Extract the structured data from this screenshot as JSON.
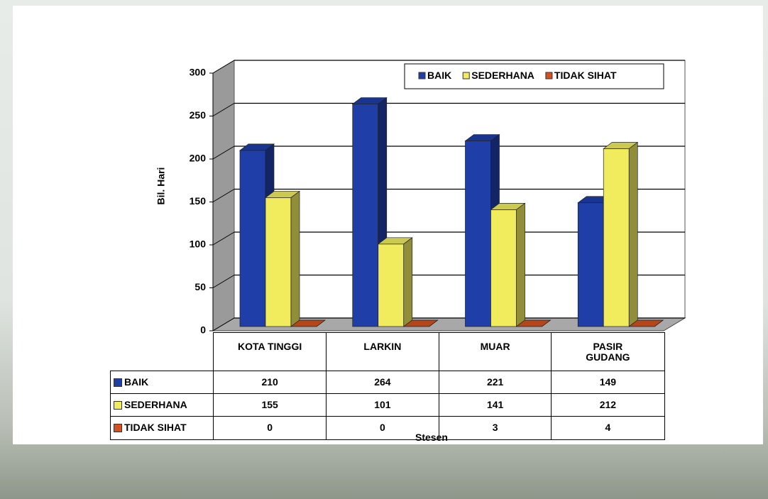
{
  "chart_data": {
    "type": "bar3d",
    "y_label": "Bil. Hari",
    "x_label": "Stesen",
    "categories": [
      "KOTA TINGGI",
      "LARKIN",
      "MUAR",
      "PASIR GUDANG"
    ],
    "series": [
      {
        "name": "BAIK",
        "color": "#1f3ea8",
        "values": [
          210,
          264,
          221,
          149
        ]
      },
      {
        "name": "SEDERHANA",
        "color": "#f0ec5e",
        "values": [
          155,
          101,
          141,
          212
        ]
      },
      {
        "name": "TIDAK SIHAT",
        "color": "#d4521f",
        "values": [
          0,
          0,
          3,
          4
        ]
      }
    ],
    "ylim": [
      0,
      300
    ],
    "yticks": [
      0,
      50,
      100,
      150,
      200,
      250,
      300
    ],
    "grid": true,
    "legend": "top-right"
  }
}
